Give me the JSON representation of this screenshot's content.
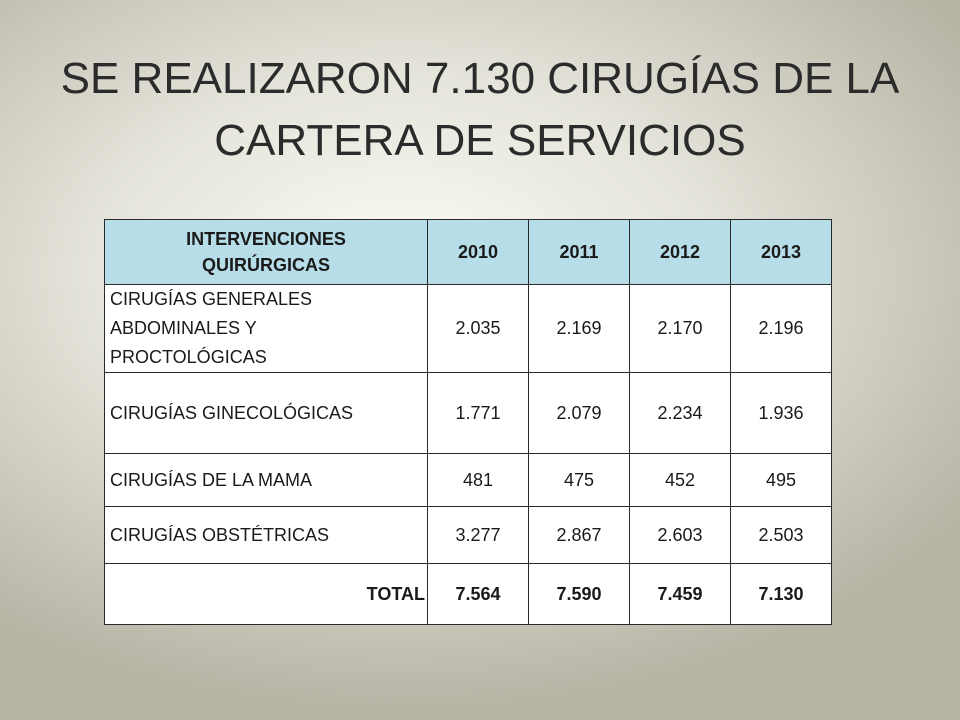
{
  "title": {
    "line1": "SE REALIZARON 7.130 CIRUGÍAS DE LA",
    "line2": "CARTERA DE SERVICIOS"
  },
  "table": {
    "header": {
      "label_line1": "INTERVENCIONES",
      "label_line2": "QUIRÚRGICAS",
      "years": [
        "2010",
        "2011",
        "2012",
        "2013"
      ]
    },
    "rows": [
      {
        "label_lines": [
          "CIRUGÍAS GENERALES",
          "ABDOMINALES Y",
          "PROCTOLÓGICAS"
        ],
        "values": [
          "2.035",
          "2.169",
          "2.170",
          "2.196"
        ]
      },
      {
        "label_lines": [
          "CIRUGÍAS GINECOLÓGICAS"
        ],
        "values": [
          "1.771",
          "2.079",
          "2.234",
          "1.936"
        ]
      },
      {
        "label_lines": [
          "CIRUGÍAS DE LA MAMA"
        ],
        "values": [
          "481",
          "475",
          "452",
          "495"
        ]
      },
      {
        "label_lines": [
          "CIRUGÍAS OBSTÉTRICAS"
        ],
        "values": [
          "3.277",
          "2.867",
          "2.603",
          "2.503"
        ]
      }
    ],
    "total": {
      "label": "TOTAL",
      "values": [
        "7.564",
        "7.590",
        "7.459",
        "7.130"
      ]
    }
  }
}
